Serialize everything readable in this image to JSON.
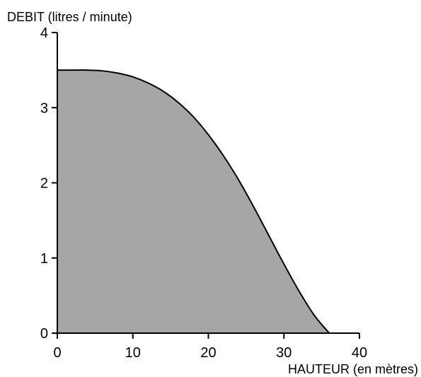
{
  "chart_data": {
    "type": "area",
    "ylabel": "DEBIT (litres / minute)",
    "xlabel": "HAUTEUR (en mètres)",
    "xlim": [
      0,
      40
    ],
    "ylim": [
      0,
      4
    ],
    "x_ticks": [
      0,
      10,
      20,
      30,
      40
    ],
    "y_ticks": [
      0,
      1,
      2,
      3,
      4
    ],
    "x_tick_labels": [
      "0",
      "10",
      "20",
      "30",
      "40"
    ],
    "y_tick_labels": [
      "0",
      "1",
      "2",
      "3",
      "4"
    ],
    "grid": false,
    "fill_color": "#a6a6a6",
    "line_color": "#000000",
    "series": [
      {
        "x": [
          0,
          2,
          4,
          6,
          8,
          10,
          12,
          14,
          16,
          18,
          20,
          22,
          24,
          26,
          28,
          30,
          32,
          34,
          36
        ],
        "values": [
          3.5,
          3.5,
          3.5,
          3.49,
          3.46,
          3.41,
          3.33,
          3.22,
          3.07,
          2.88,
          2.64,
          2.36,
          2.04,
          1.68,
          1.3,
          0.92,
          0.56,
          0.24,
          0
        ]
      }
    ]
  }
}
